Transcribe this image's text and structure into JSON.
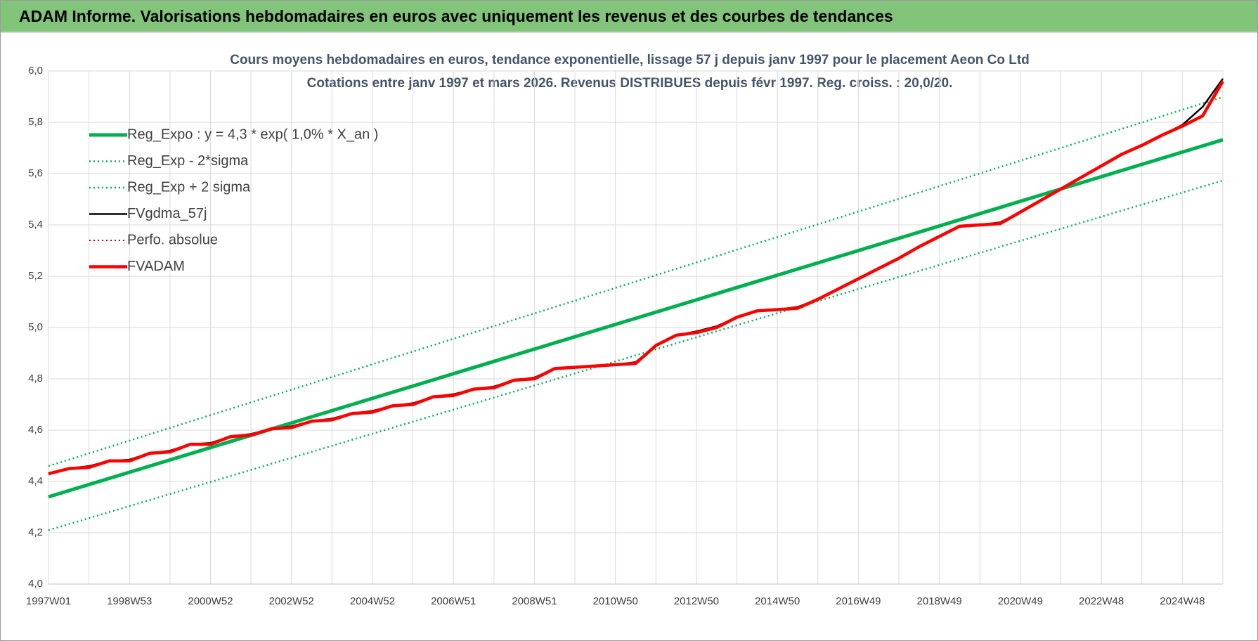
{
  "header": {
    "title": "ADAM Informe. Valorisations hebdomadaires en euros avec uniquement les revenus et des courbes de tendances"
  },
  "chart_data": {
    "type": "line",
    "title": "Cours moyens hebdomadaires en euros, tendance exponentielle, lissage 57 j depuis janv 1997  pour le placement Aeon Co Ltd",
    "subtitle": "Cotations entre janv 1997 et mars 2026. Revenus DISTRIBUES depuis févr 1997. Reg. croiss. : 20,0/20.",
    "categories": [
      "1997W01",
      null,
      null,
      null,
      "1998W53",
      null,
      null,
      null,
      "2000W52",
      null,
      null,
      null,
      "2002W52",
      null,
      null,
      null,
      "2004W52",
      null,
      null,
      null,
      "2006W51",
      null,
      null,
      null,
      "2008W51",
      null,
      null,
      null,
      "2010W50",
      null,
      null,
      null,
      "2012W50",
      null,
      null,
      null,
      "2014W50",
      null,
      null,
      null,
      "2016W49",
      null,
      null,
      null,
      "2018W49",
      null,
      null,
      null,
      "2020W49",
      null,
      null,
      null,
      "2022W48",
      null,
      null,
      null,
      "2024W48",
      null,
      null
    ],
    "ylim": [
      4.0,
      6.0
    ],
    "yticks": [
      {
        "value": 4.0,
        "label": "4,0"
      },
      {
        "value": 4.2,
        "label": "4,2"
      },
      {
        "value": 4.4,
        "label": "4,4"
      },
      {
        "value": 4.6,
        "label": "4,6"
      },
      {
        "value": 4.8,
        "label": "4,8"
      },
      {
        "value": 5.0,
        "label": "5,0"
      },
      {
        "value": 5.2,
        "label": "5,2"
      },
      {
        "value": 5.4,
        "label": "5,4"
      },
      {
        "value": 5.6,
        "label": "5,6"
      },
      {
        "value": 5.8,
        "label": "5,8"
      },
      {
        "value": 6.0,
        "label": "6,0"
      }
    ],
    "grid": true,
    "legend": "upper left",
    "series": [
      {
        "name": "Reg_Expo : y = 4,3 * exp( 1,0% *  X_an )",
        "color": "#00b050",
        "style": "solid",
        "values": [
          4.34,
          4.364,
          4.388,
          4.412,
          4.436,
          4.46,
          4.484,
          4.508,
          4.532,
          4.556,
          4.58,
          4.604,
          4.628,
          4.652,
          4.676,
          4.7,
          4.724,
          4.748,
          4.772,
          4.796,
          4.82,
          4.844,
          4.868,
          4.892,
          4.916,
          4.94,
          4.964,
          4.988,
          5.012,
          5.036,
          5.06,
          5.084,
          5.108,
          5.132,
          5.156,
          5.18,
          5.204,
          5.228,
          5.252,
          5.276,
          5.3,
          5.324,
          5.348,
          5.372,
          5.396,
          5.42,
          5.444,
          5.468,
          5.492,
          5.516,
          5.54,
          5.564,
          5.588,
          5.612,
          5.636,
          5.66,
          5.684,
          5.708,
          5.732
        ]
      },
      {
        "name": "Reg_Exp - 2*sigma",
        "color": "#00b050",
        "style": "dotted",
        "values": [
          4.21,
          4.2335,
          4.257,
          4.2805,
          4.304,
          4.3275,
          4.351,
          4.3745,
          4.398,
          4.4215,
          4.445,
          4.4685,
          4.492,
          4.5155,
          4.539,
          4.5625,
          4.586,
          4.6095,
          4.633,
          4.6565,
          4.68,
          4.7035,
          4.727,
          4.7505,
          4.774,
          4.7975,
          4.821,
          4.8445,
          4.868,
          4.8915,
          4.915,
          4.9385,
          4.962,
          4.9855,
          5.009,
          5.0325,
          5.056,
          5.0795,
          5.103,
          5.1265,
          5.15,
          5.1735,
          5.197,
          5.2205,
          5.244,
          5.2675,
          5.291,
          5.3145,
          5.338,
          5.3615,
          5.385,
          5.4085,
          5.432,
          5.4555,
          5.479,
          5.5025,
          5.526,
          5.5495,
          5.573
        ]
      },
      {
        "name": "Reg_Exp + 2 sigma",
        "color": "#00b050",
        "style": "dotted",
        "values": [
          4.46,
          4.4848,
          4.5096,
          4.5344,
          4.5592,
          4.584,
          4.6088,
          4.6336,
          4.6584,
          4.6832,
          4.708,
          4.7328,
          4.7576,
          4.7824,
          4.8072,
          4.832,
          4.8568,
          4.8816,
          4.9064,
          4.9312,
          4.956,
          4.9808,
          5.0056,
          5.0304,
          5.0552,
          5.08,
          5.1048,
          5.1296,
          5.1544,
          5.1792,
          5.204,
          5.2288,
          5.2536,
          5.2784,
          5.3032,
          5.328,
          5.3528,
          5.3776,
          5.4024,
          5.4272,
          5.452,
          5.4768,
          5.5016,
          5.5264,
          5.5512,
          5.576,
          5.6008,
          5.6256,
          5.6504,
          5.6752,
          5.7,
          5.7248,
          5.7496,
          5.7744,
          5.7992,
          5.824,
          5.8488,
          5.8736,
          5.8984
        ]
      },
      {
        "name": "FVgdma_57j",
        "color": "#000000",
        "style": "solid",
        "values": [
          4.43,
          4.45,
          4.46,
          4.48,
          4.485,
          4.51,
          4.52,
          4.545,
          4.55,
          4.575,
          4.585,
          4.605,
          4.615,
          4.635,
          4.645,
          4.665,
          4.675,
          4.695,
          4.705,
          4.73,
          4.74,
          4.76,
          4.77,
          4.795,
          4.805,
          4.84,
          4.845,
          4.85,
          4.855,
          4.865,
          4.93,
          4.97,
          4.985,
          5.005,
          5.04,
          5.065,
          5.07,
          5.08,
          5.11,
          5.15,
          5.19,
          5.23,
          5.27,
          5.315,
          5.355,
          5.395,
          5.4,
          5.41,
          5.45,
          5.495,
          5.54,
          5.585,
          5.63,
          5.675,
          5.71,
          5.75,
          5.79,
          5.86,
          5.97
        ]
      },
      {
        "name": "Perfo. absolue",
        "color": "#c00000",
        "style": "dotted",
        "values": [
          4.43,
          4.45,
          4.455,
          4.48,
          4.48,
          4.51,
          4.515,
          4.545,
          4.545,
          4.575,
          4.58,
          4.605,
          4.61,
          4.635,
          4.64,
          4.665,
          4.67,
          4.695,
          4.7,
          4.73,
          4.735,
          4.76,
          4.765,
          4.795,
          4.8,
          4.84,
          4.845,
          4.85,
          4.855,
          4.86,
          4.93,
          4.97,
          4.98,
          5.0,
          5.04,
          5.065,
          5.07,
          5.075,
          5.11,
          5.15,
          5.19,
          5.23,
          5.27,
          5.315,
          5.355,
          5.395,
          5.4,
          5.405,
          5.45,
          5.495,
          5.54,
          5.585,
          5.63,
          5.675,
          5.71,
          5.75,
          5.785,
          5.825,
          5.96
        ]
      },
      {
        "name": "FVADAM",
        "color": "#ff0000",
        "style": "solid",
        "values": [
          4.43,
          4.45,
          4.455,
          4.48,
          4.48,
          4.51,
          4.515,
          4.545,
          4.545,
          4.575,
          4.58,
          4.605,
          4.61,
          4.635,
          4.64,
          4.665,
          4.67,
          4.695,
          4.7,
          4.73,
          4.735,
          4.76,
          4.765,
          4.795,
          4.8,
          4.84,
          4.845,
          4.85,
          4.855,
          4.86,
          4.93,
          4.97,
          4.98,
          5.0,
          5.04,
          5.065,
          5.07,
          5.075,
          5.11,
          5.15,
          5.19,
          5.23,
          5.27,
          5.315,
          5.355,
          5.395,
          5.4,
          5.405,
          5.45,
          5.495,
          5.54,
          5.585,
          5.63,
          5.675,
          5.71,
          5.75,
          5.785,
          5.825,
          5.96
        ]
      }
    ]
  }
}
